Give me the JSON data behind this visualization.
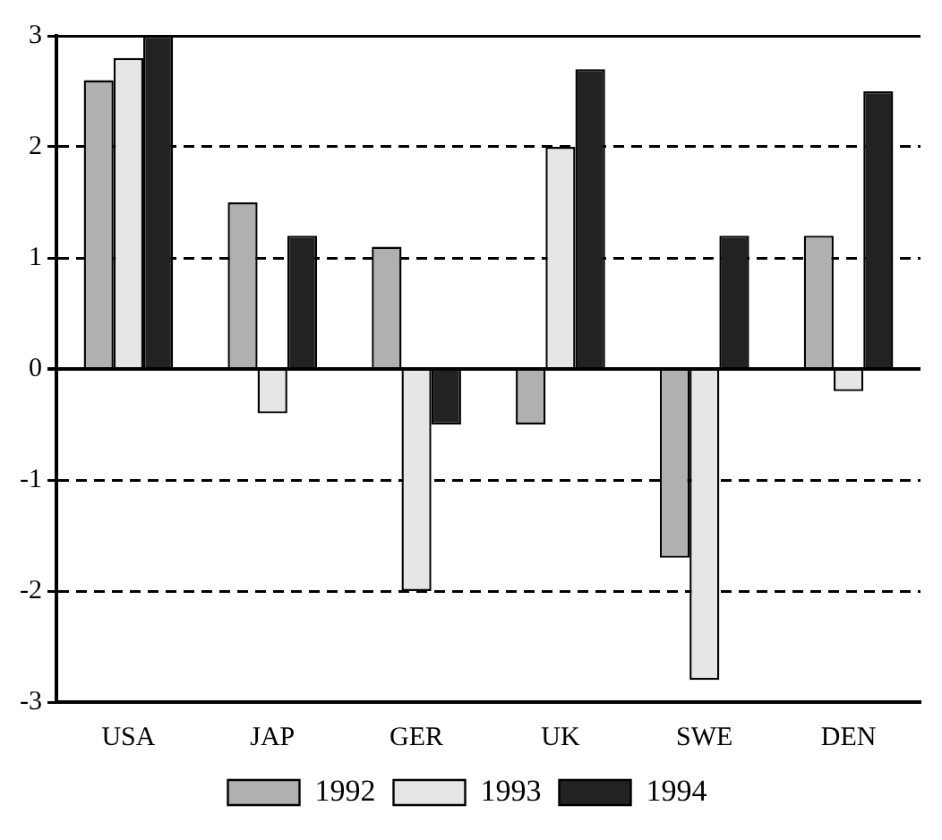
{
  "chart_data": {
    "type": "bar",
    "categories": [
      "USA",
      "JAP",
      "GER",
      "UK",
      "SWE",
      "DEN"
    ],
    "series": [
      {
        "name": "1992",
        "color": "#b0b0b0",
        "values": [
          2.6,
          1.5,
          1.1,
          -0.5,
          -1.7,
          1.2
        ]
      },
      {
        "name": "1993",
        "color": "#e6e6e6",
        "values": [
          2.8,
          -0.4,
          -2.0,
          2.0,
          -2.8,
          -0.2
        ]
      },
      {
        "name": "1994",
        "color": "#222222",
        "values": [
          3.0,
          1.2,
          -0.5,
          2.7,
          1.2,
          2.5
        ]
      }
    ],
    "ylim": [
      -3,
      3
    ],
    "yticks": [
      -3,
      -2,
      -1,
      0,
      1,
      2,
      3
    ],
    "grid": "y",
    "legend": "bottom"
  }
}
